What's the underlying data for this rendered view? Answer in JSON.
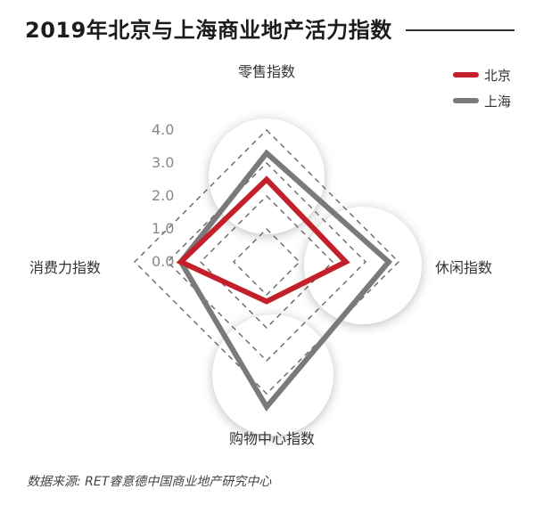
{
  "title": "2019年北京与上海商业地产活力指数",
  "source": "数据来源: RET睿意德中国商业地产研究中心",
  "colors": {
    "beijing": "#c4202b",
    "shanghai": "#7a7a7a",
    "grid": "#666666",
    "bubble": "#ffffff"
  },
  "chart_data": {
    "type": "radar",
    "axes": [
      "零售指数",
      "休闲指数",
      "购物中心指数",
      "消费力指数"
    ],
    "ticks": [
      "0.0",
      "1.0",
      "2.0",
      "3.0",
      "4.0"
    ],
    "range": [
      0,
      4
    ],
    "legend_position": "top-right",
    "series": [
      {
        "name": "北京",
        "values": [
          2.5,
          2.4,
          1.2,
          2.6
        ],
        "color": "#c4202b"
      },
      {
        "name": "上海",
        "values": [
          3.3,
          3.7,
          4.4,
          2.6
        ],
        "color": "#7a7a7a"
      }
    ]
  }
}
